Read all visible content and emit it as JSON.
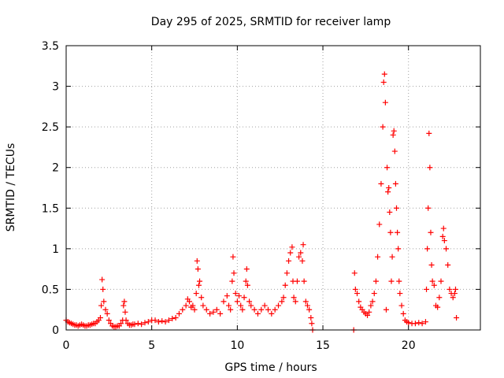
{
  "chart_data": {
    "type": "scatter",
    "title": "Day 295 of 2025, SRMTID for receiver lamp",
    "xlabel": "GPS time / hours",
    "ylabel": "SRMTID / TECUs",
    "xlim": [
      0,
      24.2
    ],
    "ylim": [
      0,
      3.5
    ],
    "x_ticks": [
      0,
      5,
      10,
      15,
      20
    ],
    "x_tick_labels": [
      "0",
      "5",
      "10",
      "15",
      "20"
    ],
    "y_ticks": [
      0,
      0.5,
      1,
      1.5,
      2,
      2.5,
      3,
      3.5
    ],
    "y_tick_labels": [
      "0",
      "0.5",
      "1",
      "1.5",
      "2",
      "2.5",
      "3",
      "3.5"
    ],
    "grid": true,
    "marker": "+",
    "colors": {
      "series": "#ff0000",
      "grid": "#a0a0a0",
      "axis": "#000000",
      "background": "#ffffff"
    },
    "series": [
      {
        "name": "SRMTID",
        "points": [
          [
            0.0,
            0.12
          ],
          [
            0.1,
            0.1
          ],
          [
            0.2,
            0.09
          ],
          [
            0.3,
            0.08
          ],
          [
            0.4,
            0.07
          ],
          [
            0.5,
            0.06
          ],
          [
            0.6,
            0.06
          ],
          [
            0.7,
            0.05
          ],
          [
            0.8,
            0.06
          ],
          [
            0.9,
            0.07
          ],
          [
            1.0,
            0.06
          ],
          [
            1.1,
            0.05
          ],
          [
            1.2,
            0.05
          ],
          [
            1.3,
            0.06
          ],
          [
            1.4,
            0.06
          ],
          [
            1.5,
            0.07
          ],
          [
            1.6,
            0.08
          ],
          [
            1.7,
            0.08
          ],
          [
            1.8,
            0.1
          ],
          [
            1.9,
            0.12
          ],
          [
            2.0,
            0.15
          ],
          [
            2.05,
            0.3
          ],
          [
            2.1,
            0.62
          ],
          [
            2.15,
            0.5
          ],
          [
            2.2,
            0.35
          ],
          [
            2.3,
            0.25
          ],
          [
            2.4,
            0.2
          ],
          [
            2.5,
            0.12
          ],
          [
            2.6,
            0.08
          ],
          [
            2.7,
            0.05
          ],
          [
            2.8,
            0.04
          ],
          [
            2.9,
            0.04
          ],
          [
            3.0,
            0.05
          ],
          [
            3.1,
            0.05
          ],
          [
            3.2,
            0.08
          ],
          [
            3.3,
            0.12
          ],
          [
            3.35,
            0.3
          ],
          [
            3.4,
            0.35
          ],
          [
            3.45,
            0.22
          ],
          [
            3.5,
            0.12
          ],
          [
            3.6,
            0.08
          ],
          [
            3.7,
            0.06
          ],
          [
            3.8,
            0.06
          ],
          [
            3.9,
            0.07
          ],
          [
            4.0,
            0.07
          ],
          [
            4.2,
            0.08
          ],
          [
            4.4,
            0.07
          ],
          [
            4.6,
            0.09
          ],
          [
            4.8,
            0.1
          ],
          [
            5.0,
            0.12
          ],
          [
            5.2,
            0.12
          ],
          [
            5.4,
            0.1
          ],
          [
            5.6,
            0.11
          ],
          [
            5.8,
            0.1
          ],
          [
            6.0,
            0.12
          ],
          [
            6.2,
            0.14
          ],
          [
            6.4,
            0.15
          ],
          [
            6.6,
            0.2
          ],
          [
            6.8,
            0.25
          ],
          [
            7.0,
            0.3
          ],
          [
            7.1,
            0.38
          ],
          [
            7.2,
            0.35
          ],
          [
            7.3,
            0.28
          ],
          [
            7.4,
            0.3
          ],
          [
            7.5,
            0.25
          ],
          [
            7.6,
            0.45
          ],
          [
            7.65,
            0.85
          ],
          [
            7.7,
            0.75
          ],
          [
            7.75,
            0.55
          ],
          [
            7.8,
            0.6
          ],
          [
            7.9,
            0.4
          ],
          [
            8.0,
            0.3
          ],
          [
            8.2,
            0.25
          ],
          [
            8.4,
            0.2
          ],
          [
            8.6,
            0.22
          ],
          [
            8.8,
            0.25
          ],
          [
            9.0,
            0.2
          ],
          [
            9.2,
            0.35
          ],
          [
            9.4,
            0.42
          ],
          [
            9.5,
            0.3
          ],
          [
            9.6,
            0.25
          ],
          [
            9.7,
            0.6
          ],
          [
            9.75,
            0.9
          ],
          [
            9.8,
            0.7
          ],
          [
            9.9,
            0.45
          ],
          [
            10.0,
            0.35
          ],
          [
            10.1,
            0.42
          ],
          [
            10.2,
            0.3
          ],
          [
            10.3,
            0.25
          ],
          [
            10.4,
            0.4
          ],
          [
            10.5,
            0.6
          ],
          [
            10.55,
            0.75
          ],
          [
            10.6,
            0.55
          ],
          [
            10.7,
            0.35
          ],
          [
            10.8,
            0.3
          ],
          [
            11.0,
            0.25
          ],
          [
            11.2,
            0.2
          ],
          [
            11.4,
            0.25
          ],
          [
            11.6,
            0.3
          ],
          [
            11.8,
            0.25
          ],
          [
            12.0,
            0.2
          ],
          [
            12.2,
            0.25
          ],
          [
            12.4,
            0.3
          ],
          [
            12.6,
            0.35
          ],
          [
            12.7,
            0.4
          ],
          [
            12.8,
            0.55
          ],
          [
            12.9,
            0.7
          ],
          [
            13.0,
            0.85
          ],
          [
            13.1,
            0.95
          ],
          [
            13.2,
            1.02
          ],
          [
            13.25,
            0.6
          ],
          [
            13.3,
            0.4
          ],
          [
            13.4,
            0.35
          ],
          [
            13.5,
            0.6
          ],
          [
            13.6,
            0.9
          ],
          [
            13.7,
            0.95
          ],
          [
            13.8,
            0.85
          ],
          [
            13.85,
            1.05
          ],
          [
            13.9,
            0.6
          ],
          [
            14.0,
            0.35
          ],
          [
            14.1,
            0.3
          ],
          [
            14.2,
            0.25
          ],
          [
            14.3,
            0.15
          ],
          [
            14.35,
            0.08
          ],
          [
            14.4,
            0.0
          ],
          [
            16.8,
            0.0
          ],
          [
            16.85,
            0.7
          ],
          [
            16.9,
            0.5
          ],
          [
            17.0,
            0.45
          ],
          [
            17.1,
            0.35
          ],
          [
            17.2,
            0.28
          ],
          [
            17.3,
            0.25
          ],
          [
            17.4,
            0.22
          ],
          [
            17.5,
            0.2
          ],
          [
            17.6,
            0.18
          ],
          [
            17.7,
            0.22
          ],
          [
            17.8,
            0.3
          ],
          [
            17.9,
            0.35
          ],
          [
            18.0,
            0.45
          ],
          [
            18.1,
            0.6
          ],
          [
            18.2,
            0.9
          ],
          [
            18.3,
            1.3
          ],
          [
            18.4,
            1.8
          ],
          [
            18.5,
            2.5
          ],
          [
            18.55,
            3.05
          ],
          [
            18.6,
            3.15
          ],
          [
            18.65,
            2.8
          ],
          [
            18.7,
            0.25
          ],
          [
            18.75,
            2.0
          ],
          [
            18.8,
            1.7
          ],
          [
            18.85,
            1.75
          ],
          [
            18.9,
            1.45
          ],
          [
            18.95,
            1.2
          ],
          [
            19.0,
            0.6
          ],
          [
            19.05,
            0.9
          ],
          [
            19.1,
            2.4
          ],
          [
            19.15,
            2.45
          ],
          [
            19.2,
            2.2
          ],
          [
            19.25,
            1.8
          ],
          [
            19.3,
            1.5
          ],
          [
            19.35,
            1.2
          ],
          [
            19.4,
            1.0
          ],
          [
            19.45,
            0.6
          ],
          [
            19.5,
            0.45
          ],
          [
            19.6,
            0.3
          ],
          [
            19.7,
            0.2
          ],
          [
            19.8,
            0.12
          ],
          [
            19.9,
            0.1
          ],
          [
            20.0,
            0.09
          ],
          [
            20.2,
            0.08
          ],
          [
            20.4,
            0.08
          ],
          [
            20.6,
            0.09
          ],
          [
            20.8,
            0.08
          ],
          [
            21.0,
            0.1
          ],
          [
            21.05,
            0.5
          ],
          [
            21.1,
            1.0
          ],
          [
            21.15,
            1.5
          ],
          [
            21.2,
            2.42
          ],
          [
            21.25,
            2.0
          ],
          [
            21.3,
            1.2
          ],
          [
            21.35,
            0.8
          ],
          [
            21.4,
            0.6
          ],
          [
            21.5,
            0.55
          ],
          [
            21.6,
            0.3
          ],
          [
            21.7,
            0.28
          ],
          [
            21.8,
            0.4
          ],
          [
            21.9,
            0.6
          ],
          [
            22.0,
            1.15
          ],
          [
            22.05,
            1.25
          ],
          [
            22.1,
            1.1
          ],
          [
            22.2,
            1.0
          ],
          [
            22.3,
            0.8
          ],
          [
            22.4,
            0.5
          ],
          [
            22.5,
            0.45
          ],
          [
            22.6,
            0.4
          ],
          [
            22.7,
            0.45
          ],
          [
            22.75,
            0.5
          ],
          [
            22.8,
            0.15
          ]
        ]
      }
    ]
  }
}
